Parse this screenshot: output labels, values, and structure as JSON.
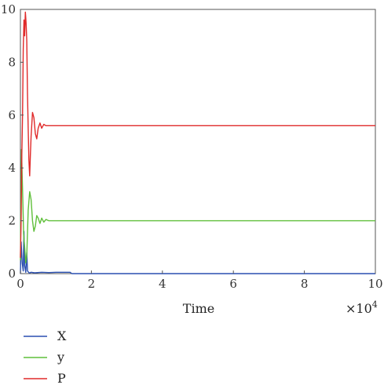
{
  "chart_data": {
    "type": "line",
    "title": "",
    "xlabel": "Time",
    "ylabel": "",
    "x_multiplier_label": "×10",
    "x_multiplier_exp": "4",
    "xlim": [
      0,
      10
    ],
    "ylim": [
      0,
      10
    ],
    "xticks": [
      "0",
      "2",
      "4",
      "6",
      "8",
      "10"
    ],
    "yticks": [
      "0",
      "2",
      "4",
      "6",
      "8",
      "10"
    ],
    "grid": false,
    "legend_position": "bottom-left",
    "series": [
      {
        "name": "X",
        "color": "#2a4fb0",
        "x": [
          0,
          0.02,
          0.05,
          0.08,
          0.1,
          0.12,
          0.15,
          0.18,
          0.2,
          0.25,
          0.3,
          0.4,
          0.6,
          0.8,
          1.0,
          1.4,
          1.45,
          10
        ],
        "y": [
          0,
          1.2,
          0.4,
          0.1,
          1.6,
          0.3,
          0.05,
          0.8,
          0.1,
          0.02,
          0.05,
          0.03,
          0.05,
          0.04,
          0.05,
          0.05,
          0.0,
          0.0
        ]
      },
      {
        "name": "y",
        "color": "#5fbf3a",
        "x": [
          0,
          0.03,
          0.06,
          0.09,
          0.12,
          0.15,
          0.18,
          0.22,
          0.26,
          0.3,
          0.34,
          0.38,
          0.42,
          0.46,
          0.5,
          0.55,
          0.6,
          0.66,
          0.72,
          0.8,
          0.9,
          1.0,
          10
        ],
        "y": [
          0.5,
          4.7,
          3.2,
          1.5,
          1.0,
          0.4,
          0.7,
          2.4,
          3.1,
          2.8,
          2.0,
          1.6,
          1.8,
          2.2,
          2.1,
          1.9,
          2.1,
          1.95,
          2.05,
          2.0,
          2.0,
          2.0,
          2.0
        ]
      },
      {
        "name": "P",
        "color": "#e02a2a",
        "x": [
          0,
          0.02,
          0.04,
          0.06,
          0.08,
          0.1,
          0.12,
          0.14,
          0.16,
          0.18,
          0.2,
          0.22,
          0.24,
          0.26,
          0.28,
          0.3,
          0.34,
          0.38,
          0.42,
          0.46,
          0.5,
          0.55,
          0.6,
          0.66,
          0.72,
          0.8,
          0.9,
          10
        ],
        "y": [
          0.6,
          2.0,
          4.5,
          6.0,
          8.5,
          9.6,
          9.0,
          9.9,
          9.5,
          8.8,
          6.8,
          5.5,
          4.3,
          3.7,
          4.5,
          5.2,
          6.1,
          5.9,
          5.3,
          5.1,
          5.5,
          5.7,
          5.5,
          5.65,
          5.6,
          5.6,
          5.6,
          5.6
        ]
      }
    ]
  }
}
